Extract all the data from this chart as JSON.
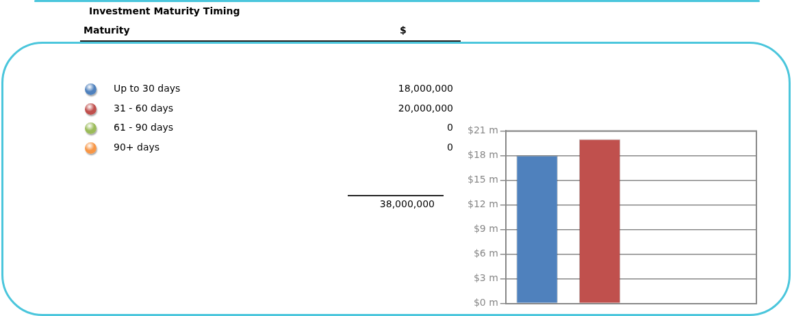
{
  "chart_data": {
    "type": "bar",
    "title": "Investment Maturity Timing",
    "categories": [
      null,
      null,
      null,
      null
    ],
    "series": [
      {
        "name": "Up to 30 days",
        "color": "#4f81bd",
        "values": [
          18,
          null,
          null,
          null
        ]
      },
      {
        "name": "31 - 60 days",
        "color": "#c0504d",
        "values": [
          null,
          20,
          null,
          null
        ]
      },
      {
        "name": "61 - 90 days",
        "color": "#9bbb59",
        "values": [
          null,
          null,
          0,
          null
        ]
      },
      {
        "name": "90+ days",
        "color": "#f79646",
        "values": [
          null,
          null,
          null,
          0
        ]
      }
    ],
    "annotations": [
      "Maturity",
      "$",
      "18,000,000",
      "20,000,000",
      "0",
      "0",
      "38,000,000"
    ],
    "ylim": [
      0,
      21
    ],
    "yticks": [
      {
        "value": 0,
        "label": "$0 m"
      },
      {
        "value": 3,
        "label": "$3 m"
      },
      {
        "value": 6,
        "label": "$6 m"
      },
      {
        "value": 9,
        "label": "$9 m"
      },
      {
        "value": 12,
        "label": "$12 m"
      },
      {
        "value": 15,
        "label": "$15 m"
      },
      {
        "value": 18,
        "label": "$18 m"
      },
      {
        "value": 21,
        "label": "$21 m"
      }
    ],
    "grid": "y",
    "legend": "left",
    "tick_labels": "y"
  }
}
